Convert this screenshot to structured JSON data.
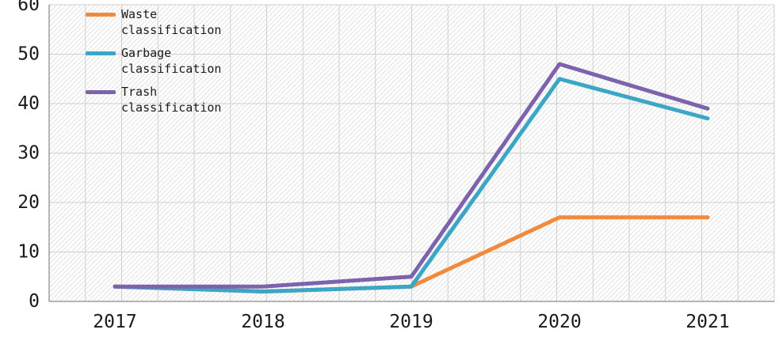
{
  "chart_data": {
    "type": "line",
    "x": [
      2017,
      2018,
      2019,
      2020,
      2021
    ],
    "series": [
      {
        "name": "Waste classification",
        "color": "#F08A3C",
        "values": [
          3,
          2,
          3,
          17,
          17
        ]
      },
      {
        "name": "Garbage classification",
        "color": "#3BA6C6",
        "values": [
          3,
          2,
          3,
          45,
          37
        ]
      },
      {
        "name": "Trash classification",
        "color": "#7D62AD",
        "values": [
          3,
          3,
          5,
          48,
          39
        ]
      }
    ],
    "title": "",
    "xlabel": "",
    "ylabel": "",
    "ylim": [
      0,
      60
    ],
    "yticks": [
      0,
      10,
      20,
      30,
      40,
      50,
      60
    ],
    "grid": true,
    "plot_background": "hatched",
    "legend_position": "top-left"
  },
  "legend": {
    "items": [
      {
        "label": "Waste\nclassification"
      },
      {
        "label": "Garbage\nclassification"
      },
      {
        "label": "Trash\nclassification"
      }
    ]
  },
  "colors": {
    "grid": "#cfcfcf",
    "hatch": "#e3e3e3",
    "axis": "#9e9e9e",
    "text": "#1a1a1a"
  }
}
